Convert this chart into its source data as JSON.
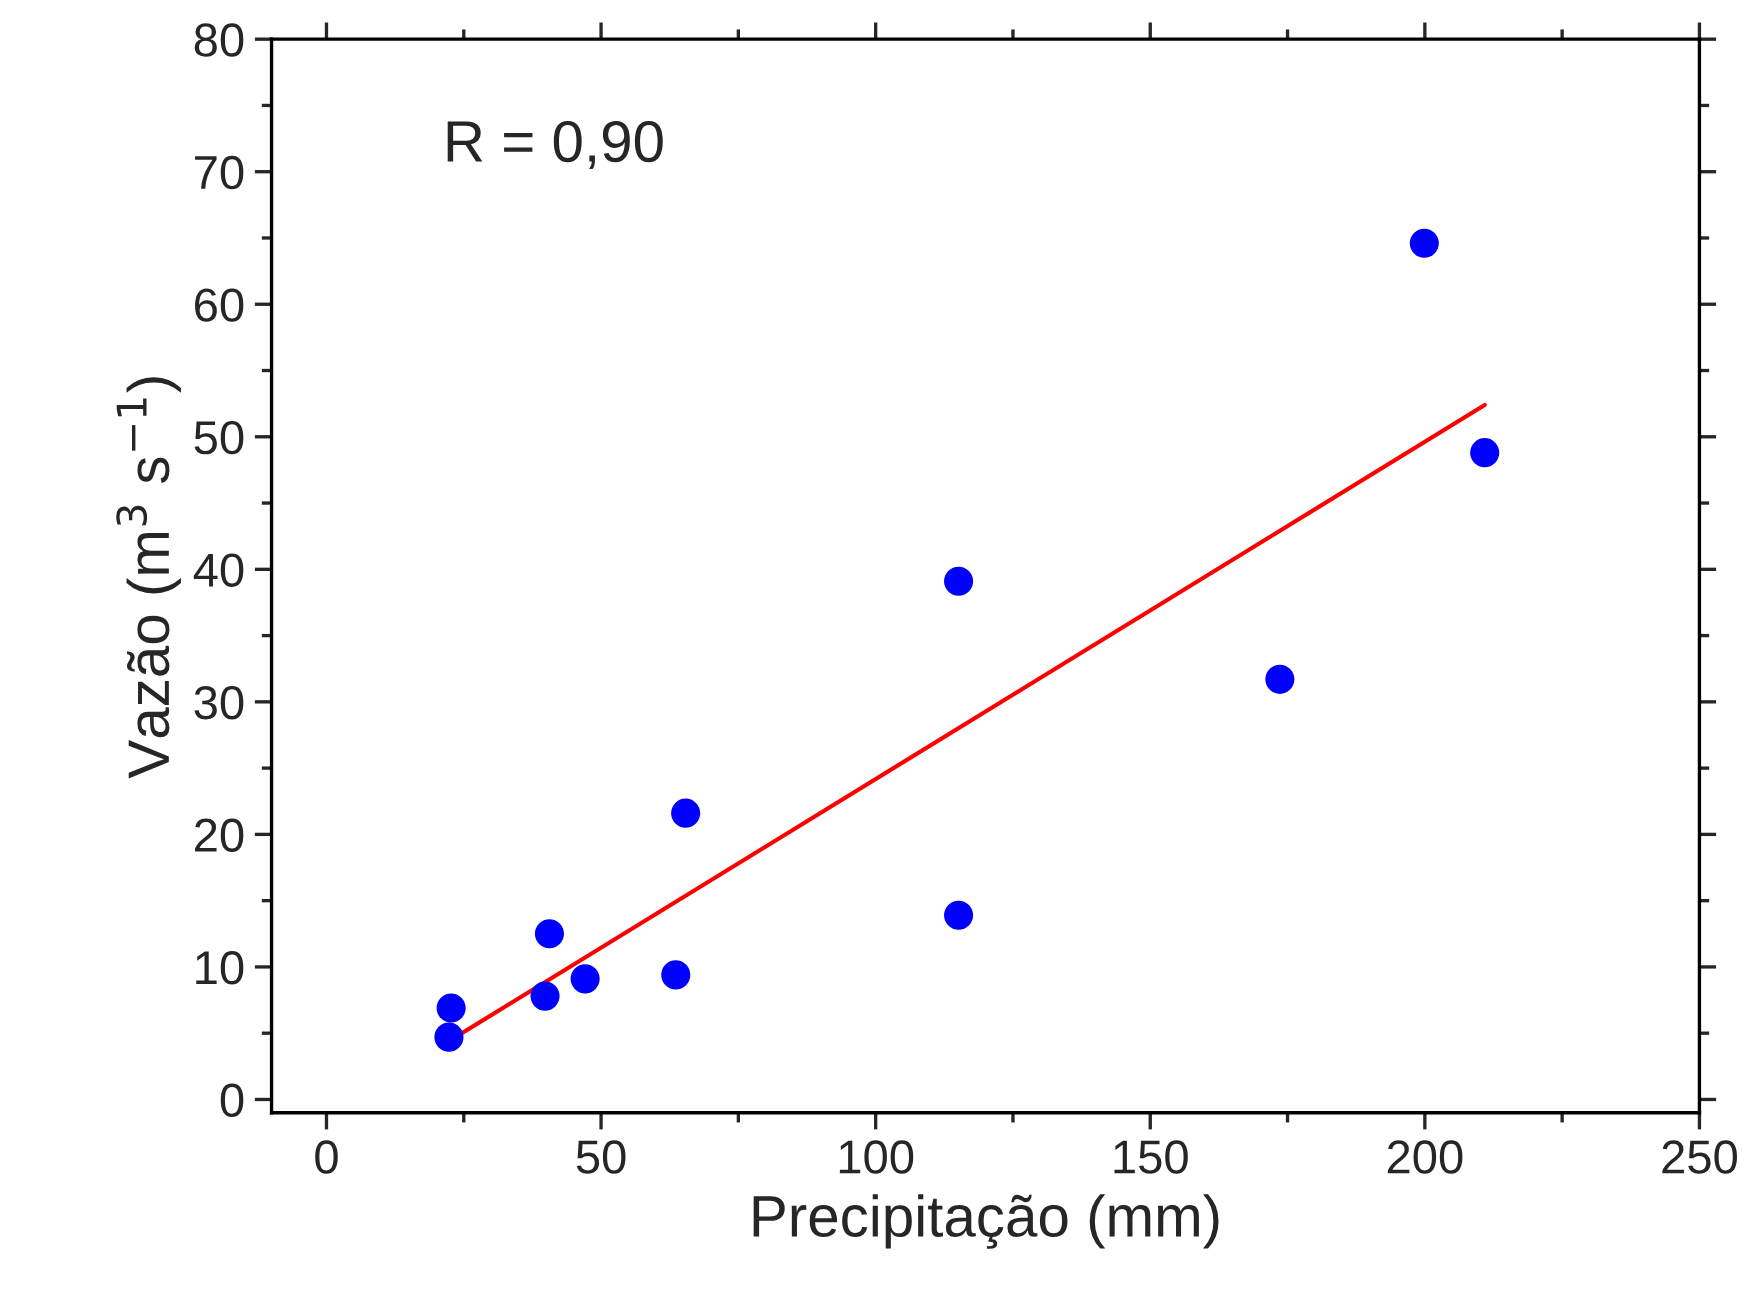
{
  "chart_data": {
    "type": "scatter",
    "xlabel": "Precipitação (mm)",
    "ylabel": "Vazão (m$^{3}$ s$^{−1}$)",
    "annotations": [
      "R = 0,90"
    ],
    "xlim": [
      -10,
      250
    ],
    "xticks": [
      0,
      50,
      100,
      150,
      200,
      250
    ],
    "ylim": [
      -1,
      80
    ],
    "yticks": [
      0,
      10,
      20,
      30,
      40,
      50,
      60,
      70,
      80
    ],
    "grid": false,
    "marker": "circle",
    "series": [
      {
        "color": "#0000ff",
        "x": [
          22.7,
          22.3,
          39.8,
          40.6,
          47.1,
          63.6,
          65.4,
          115.1,
          115.1,
          173.6,
          199.9,
          210.9
        ],
        "values": [
          6.9,
          4.7,
          7.8,
          12.5,
          9.1,
          9.4,
          21.6,
          39.1,
          13.9,
          31.7,
          64.6,
          48.8
        ]
      },
      {
        "type": "line",
        "color": "#ff0000",
        "marker": "none",
        "x": [
          22.7,
          210.9
        ],
        "values": [
          4.5,
          52.4
        ]
      }
    ]
  }
}
